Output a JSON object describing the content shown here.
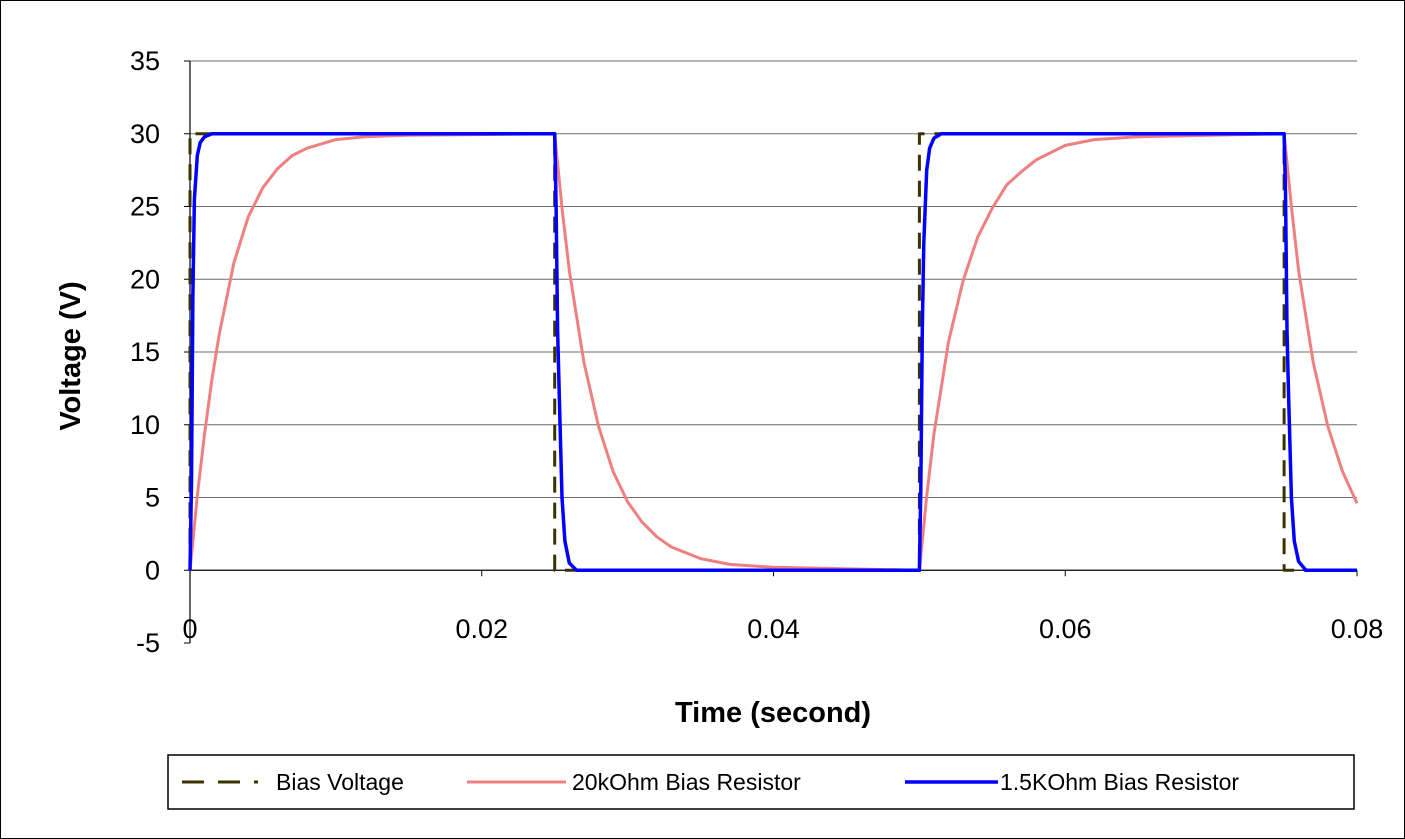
{
  "chart_data": {
    "type": "line",
    "title": "",
    "xlabel": "Time (second)",
    "ylabel": "Voltage (V)",
    "xlim": [
      0,
      0.08
    ],
    "ylim": [
      -5,
      35
    ],
    "x_ticks": [
      0,
      0.02,
      0.04,
      0.06,
      0.08
    ],
    "x_tick_labels": [
      "0",
      "0.02",
      "0.04",
      "0.06",
      "0.08"
    ],
    "y_ticks": [
      -5,
      0,
      5,
      10,
      15,
      20,
      25,
      30,
      35
    ],
    "y_tick_labels": [
      "-5",
      "0",
      "5",
      "10",
      "15",
      "20",
      "25",
      "30",
      "35"
    ],
    "grid": "horizontal",
    "legend_position": "bottom",
    "series": [
      {
        "name": "Bias Voltage",
        "color": "#3a3300",
        "style": "dashed",
        "x": [
          0,
          0,
          0.025,
          0.025,
          0.05,
          0.05,
          0.075,
          0.075,
          0.08
        ],
        "y": [
          0,
          30,
          30,
          0,
          0,
          30,
          30,
          0,
          0
        ]
      },
      {
        "name": "20kOhm Bias Resistor",
        "color": "#f08080",
        "style": "solid",
        "x": [
          0,
          0.0005,
          0.001,
          0.0015,
          0.002,
          0.003,
          0.004,
          0.005,
          0.006,
          0.007,
          0.008,
          0.01,
          0.012,
          0.015,
          0.025,
          0.0255,
          0.026,
          0.027,
          0.028,
          0.029,
          0.03,
          0.031,
          0.032,
          0.033,
          0.035,
          0.037,
          0.04,
          0.05,
          0.0505,
          0.051,
          0.052,
          0.053,
          0.054,
          0.055,
          0.056,
          0.057,
          0.058,
          0.06,
          0.062,
          0.065,
          0.075,
          0.0755,
          0.076,
          0.077,
          0.078,
          0.079,
          0.08
        ],
        "y": [
          0,
          5.1,
          9.4,
          13.1,
          16.2,
          21.1,
          24.3,
          26.3,
          27.6,
          28.5,
          29.0,
          29.6,
          29.8,
          29.9,
          30.0,
          24.9,
          20.6,
          14.3,
          9.9,
          6.8,
          4.7,
          3.3,
          2.3,
          1.6,
          0.8,
          0.4,
          0.2,
          0.0,
          5.1,
          9.4,
          15.7,
          19.9,
          22.9,
          24.9,
          26.5,
          27.4,
          28.2,
          29.2,
          29.6,
          29.8,
          30.0,
          25.0,
          20.6,
          14.3,
          9.9,
          6.8,
          4.6
        ]
      },
      {
        "name": "1.5KOhm Bias Resistor",
        "color": "#0000ff",
        "style": "solid",
        "x": [
          0,
          0.0001,
          0.0002,
          0.0003,
          0.0005,
          0.0007,
          0.001,
          0.0015,
          0.002,
          0.025,
          0.0251,
          0.0252,
          0.0253,
          0.0255,
          0.0257,
          0.026,
          0.0265,
          0.05,
          0.0501,
          0.0502,
          0.0503,
          0.0505,
          0.0507,
          0.051,
          0.0515,
          0.052,
          0.075,
          0.0751,
          0.0752,
          0.0753,
          0.0755,
          0.0757,
          0.076,
          0.0765,
          0.08
        ],
        "y": [
          0,
          6,
          19,
          25.5,
          28.5,
          29.4,
          29.8,
          30,
          30,
          30,
          25,
          16.5,
          12.5,
          5,
          2,
          0.5,
          0,
          0,
          5.5,
          16.5,
          22.5,
          27.5,
          29,
          29.7,
          30,
          30,
          30,
          26,
          16.5,
          12.5,
          5,
          2,
          0.6,
          0,
          0
        ]
      }
    ]
  }
}
